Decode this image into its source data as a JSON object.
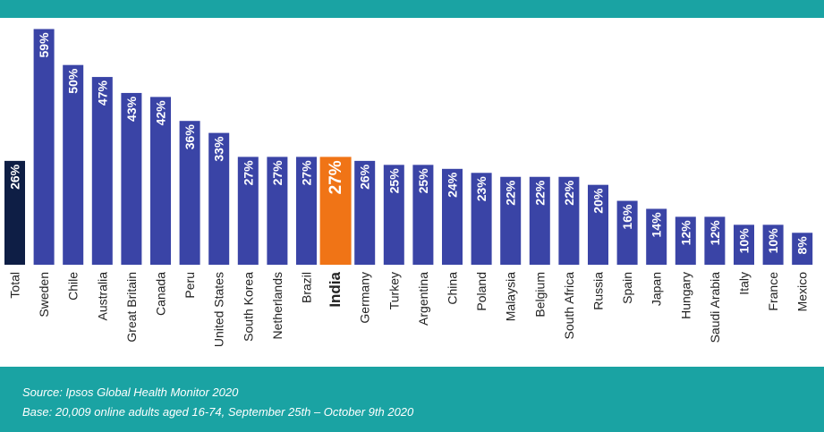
{
  "chart_data": {
    "type": "bar",
    "categories": [
      "Total",
      "Sweden",
      "Chile",
      "Australia",
      "Great Britain",
      "Canada",
      "Peru",
      "United States",
      "South Korea",
      "Netherlands",
      "Brazil",
      "India",
      "Germany",
      "Turkey",
      "Argentina",
      "China",
      "Poland",
      "Malaysia",
      "Belgium",
      "South Africa",
      "Russia",
      "Spain",
      "Japan",
      "Hungary",
      "Saudi Arabia",
      "Italy",
      "France",
      "Mexico"
    ],
    "values": [
      26,
      59,
      50,
      47,
      43,
      42,
      36,
      33,
      27,
      27,
      27,
      27,
      26,
      25,
      25,
      24,
      23,
      22,
      22,
      22,
      20,
      16,
      14,
      12,
      12,
      10,
      10,
      8
    ],
    "value_labels": [
      "26%",
      "59%",
      "50%",
      "47%",
      "43%",
      "42%",
      "36%",
      "33%",
      "27%",
      "27%",
      "27%",
      "27%",
      "26%",
      "25%",
      "25%",
      "24%",
      "23%",
      "22%",
      "22%",
      "22%",
      "20%",
      "16%",
      "14%",
      "12%",
      "12%",
      "10%",
      "10%",
      "8%"
    ],
    "ylim": [
      0,
      60
    ],
    "grid": false,
    "legend": "none",
    "colors": {
      "default": "#3a44a6",
      "total": "#0e1e45",
      "highlight": "#f07416",
      "band": "#1aa3a3"
    },
    "highlight_category": "India",
    "total_category": "Total"
  },
  "footer": {
    "source": "Source: Ipsos Global Health Monitor 2020",
    "base": "Base: 20,009 online adults aged 16-74, September 25th – October 9th 2020"
  }
}
